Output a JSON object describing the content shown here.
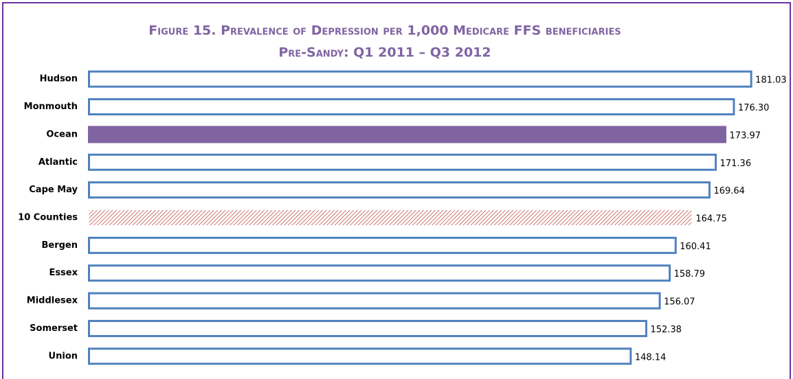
{
  "chart_data": {
    "type": "bar",
    "orientation": "horizontal",
    "title": "Figure 15. Prevalence of Depression per 1,000 Medicare FFS beneficiaries",
    "subtitle": "Pre-Sandy: Q1 2011 – Q3 2012",
    "categories": [
      "Hudson",
      "Monmouth",
      "Ocean",
      "Atlantic",
      "Cape May",
      "10 Counties",
      "Bergen",
      "Essex",
      "Middlesex",
      "Somerset",
      "Union"
    ],
    "values": [
      181.03,
      176.3,
      173.97,
      171.36,
      169.64,
      164.75,
      160.41,
      158.79,
      156.07,
      152.38,
      148.14
    ],
    "value_labels": [
      "181.03",
      "176.30",
      "173.97",
      "171.36",
      "169.64",
      "164.75",
      "160.41",
      "158.79",
      "156.07",
      "152.38",
      "148.14"
    ],
    "color": "#4f81bd",
    "fills": [
      "none",
      "none",
      "#8064a2",
      "none",
      "none",
      "hatch",
      "none",
      "none",
      "none",
      "none",
      "none"
    ],
    "hatch_color": "#c0504d",
    "xlim": [
      0,
      190
    ]
  }
}
